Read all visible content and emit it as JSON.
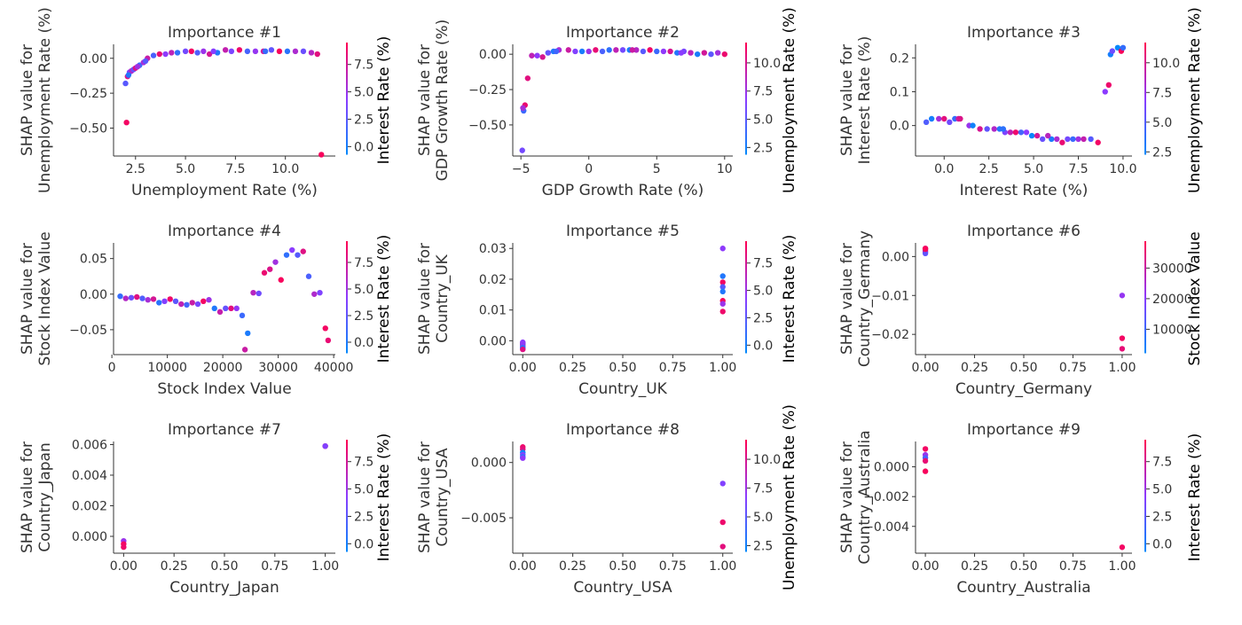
{
  "figure": {
    "colors": {
      "low": "#008afb",
      "mid": "#8c3bff",
      "high": "#ff0052"
    }
  },
  "chart_data": [
    {
      "type": "scatter",
      "title": "Importance #1",
      "xlabel": "Unemployment Rate (%)",
      "ylabel_lines": [
        "SHAP value for",
        "Unemployment Rate (%)"
      ],
      "color_label": "Interest Rate (%)",
      "xlim": [
        1.4,
        12.5
      ],
      "ylim": [
        -0.7,
        0.1
      ],
      "xticks": [
        2.5,
        5.0,
        7.5,
        10.0
      ],
      "xtick_labels": [
        "2.5",
        "5.0",
        "7.5",
        "10.0"
      ],
      "yticks": [
        -0.5,
        -0.25,
        0.0
      ],
      "ytick_labels": [
        "−0.50",
        "−0.25",
        "0.00"
      ],
      "cbar_range": [
        -0.7,
        9.5
      ],
      "cbar_ticks": [
        0.0,
        2.5,
        5.0,
        7.5
      ],
      "cbar_tick_labels": [
        "0.0",
        "2.5",
        "5.0",
        "7.5"
      ],
      "x": [
        2.0,
        2.1,
        2.2,
        2.3,
        2.4,
        2.5,
        2.7,
        2.9,
        3.1,
        3.4,
        3.7,
        4.0,
        4.3,
        4.6,
        5.0,
        5.3,
        5.6,
        5.9,
        6.2,
        6.6,
        7.0,
        7.3,
        7.7,
        8.1,
        8.5,
        8.9,
        9.3,
        9.7,
        10.1,
        10.5,
        10.9,
        11.3,
        11.6,
        2.05,
        11.8,
        2.15,
        2.6,
        3.0,
        6.4,
        9.0
      ],
      "y": [
        -0.18,
        -0.13,
        -0.1,
        -0.09,
        -0.08,
        -0.07,
        -0.05,
        -0.03,
        0.0,
        0.02,
        0.03,
        0.03,
        0.04,
        0.04,
        0.05,
        0.05,
        0.04,
        0.05,
        0.03,
        0.04,
        0.06,
        0.05,
        0.06,
        0.05,
        0.05,
        0.05,
        0.06,
        0.05,
        0.05,
        0.05,
        0.05,
        0.04,
        0.03,
        -0.46,
        -0.69,
        -0.12,
        -0.06,
        -0.02,
        0.05,
        0.05
      ],
      "c": [
        2.5,
        7.8,
        4.0,
        6.0,
        3.0,
        8.0,
        1.5,
        5.5,
        7.0,
        2.0,
        8.5,
        4.5,
        6.5,
        1.0,
        3.5,
        9.0,
        2.2,
        5.0,
        7.5,
        0.5,
        6.8,
        3.8,
        8.8,
        1.8,
        4.8,
        7.2,
        2.8,
        9.2,
        0.8,
        5.8,
        3.2,
        6.2,
        8.2,
        9.0,
        9.2,
        0.5,
        5.2,
        2.5,
        4.2,
        1.2
      ]
    },
    {
      "type": "scatter",
      "title": "Importance #2",
      "xlabel": "GDP Growth Rate (%)",
      "ylabel_lines": [
        "SHAP value for",
        "GDP Growth Rate (%)"
      ],
      "color_label": "Unemployment Rate (%)",
      "xlim": [
        -5.6,
        10.6
      ],
      "ylim": [
        -0.72,
        0.07
      ],
      "xticks": [
        -5,
        0,
        5,
        10
      ],
      "xtick_labels": [
        "−5",
        "0",
        "5",
        "10"
      ],
      "yticks": [
        -0.5,
        -0.25,
        0.0
      ],
      "ytick_labels": [
        "−0.50",
        "−0.25",
        "0.00"
      ],
      "cbar_range": [
        1.9,
        11.8
      ],
      "cbar_ticks": [
        2.5,
        5.0,
        7.5,
        10.0
      ],
      "cbar_tick_labels": [
        "2.5",
        "5.0",
        "7.5",
        "10.0"
      ],
      "x": [
        -4.9,
        -4.8,
        -4.7,
        -4.5,
        -4.2,
        -3.8,
        -3.4,
        -3.0,
        -2.6,
        -2.2,
        -1.5,
        -1.0,
        -0.5,
        0.0,
        0.5,
        1.0,
        1.5,
        2.0,
        2.5,
        3.0,
        3.5,
        4.0,
        4.5,
        5.0,
        5.5,
        6.0,
        6.5,
        7.0,
        7.5,
        8.0,
        8.5,
        9.0,
        9.5,
        10.0,
        -2.4,
        3.2,
        6.8,
        -4.85
      ],
      "y": [
        -0.68,
        -0.4,
        -0.36,
        -0.17,
        -0.01,
        -0.01,
        -0.02,
        0.01,
        0.02,
        0.03,
        0.03,
        0.02,
        0.02,
        0.02,
        0.03,
        0.02,
        0.03,
        0.03,
        0.03,
        0.03,
        0.03,
        0.02,
        0.03,
        0.02,
        0.02,
        0.02,
        0.01,
        0.02,
        0.01,
        0.0,
        0.01,
        0.0,
        0.01,
        0.0,
        0.02,
        0.03,
        0.01,
        -0.38
      ],
      "c": [
        6.0,
        4.0,
        11.0,
        10.5,
        9.0,
        7.0,
        10.0,
        5.5,
        3.0,
        8.0,
        9.5,
        6.5,
        2.8,
        7.5,
        10.8,
        4.5,
        3.5,
        9.0,
        6.0,
        2.6,
        8.5,
        5.0,
        11.2,
        4.0,
        7.0,
        10.0,
        3.2,
        6.2,
        8.8,
        2.7,
        9.8,
        5.2,
        7.8,
        11.0,
        4.2,
        9.5,
        6.8,
        8.0
      ]
    },
    {
      "type": "scatter",
      "title": "Importance #3",
      "xlabel": "Interest Rate (%)",
      "ylabel_lines": [
        "SHAP value for",
        "Interest Rate (%)"
      ],
      "color_label": "Unemployment Rate (%)",
      "xlim": [
        -1.6,
        10.5
      ],
      "ylim": [
        -0.09,
        0.24
      ],
      "xticks": [
        0.0,
        2.5,
        5.0,
        7.5,
        10.0
      ],
      "xtick_labels": [
        "0.0",
        "2.5",
        "5.0",
        "7.5",
        "10.0"
      ],
      "yticks": [
        0.0,
        0.1,
        0.2
      ],
      "ytick_labels": [
        "0.0",
        "0.1",
        "0.2"
      ],
      "cbar_range": [
        2.3,
        11.7
      ],
      "cbar_ticks": [
        2.5,
        5.0,
        7.5,
        10.0
      ],
      "cbar_tick_labels": [
        "2.5",
        "5.0",
        "7.5",
        "10.0"
      ],
      "x": [
        -1.0,
        -0.7,
        -0.3,
        0.0,
        0.3,
        0.6,
        0.8,
        1.4,
        1.6,
        2.0,
        2.4,
        2.8,
        3.1,
        3.4,
        3.7,
        4.0,
        4.3,
        4.6,
        4.9,
        5.2,
        5.5,
        6.0,
        6.3,
        6.6,
        6.9,
        7.2,
        7.5,
        7.8,
        8.2,
        8.6,
        9.0,
        9.2,
        9.3,
        9.4,
        9.7,
        9.9,
        10.0,
        5.8,
        3.3,
        0.9
      ],
      "y": [
        0.01,
        0.02,
        0.02,
        0.02,
        0.01,
        0.02,
        0.02,
        0.0,
        0.0,
        -0.01,
        -0.01,
        -0.01,
        -0.01,
        -0.02,
        -0.02,
        -0.02,
        -0.02,
        -0.02,
        -0.03,
        -0.03,
        -0.04,
        -0.04,
        -0.04,
        -0.05,
        -0.04,
        -0.04,
        -0.04,
        -0.04,
        -0.04,
        -0.05,
        0.1,
        0.12,
        0.21,
        0.22,
        0.23,
        0.22,
        0.23,
        -0.03,
        -0.01,
        0.02
      ],
      "c": [
        5.0,
        3.0,
        8.0,
        10.5,
        6.0,
        4.0,
        9.5,
        7.5,
        2.8,
        10.0,
        5.5,
        8.5,
        3.5,
        6.5,
        9.0,
        11.0,
        4.5,
        7.0,
        2.6,
        9.8,
        5.8,
        3.2,
        8.2,
        10.8,
        6.2,
        4.2,
        7.8,
        9.2,
        5.2,
        11.2,
        7.0,
        11.0,
        3.0,
        6.0,
        2.5,
        11.5,
        4.0,
        8.8,
        3.8,
        10.2
      ]
    },
    {
      "type": "scatter",
      "title": "Importance #4",
      "xlabel": "Stock Index Value",
      "ylabel_lines": [
        "SHAP value for",
        "Stock Index Value"
      ],
      "color_label": "Interest Rate (%)",
      "xlim": [
        300,
        40300
      ],
      "ylim": [
        -0.085,
        0.072
      ],
      "xticks": [
        0,
        10000,
        20000,
        30000,
        40000
      ],
      "xtick_labels": [
        "0",
        "10000",
        "20000",
        "30000",
        "40000"
      ],
      "yticks": [
        -0.05,
        0.0,
        0.05
      ],
      "ytick_labels": [
        "−0.05",
        "0.00",
        "0.05"
      ],
      "cbar_range": [
        -1.0,
        9.5
      ],
      "cbar_ticks": [
        0.0,
        2.5,
        5.0,
        7.5
      ],
      "cbar_tick_labels": [
        "0.0",
        "2.5",
        "5.0",
        "7.5"
      ],
      "x": [
        1500,
        2500,
        3500,
        4500,
        5500,
        6500,
        7500,
        8500,
        9500,
        10500,
        11500,
        12500,
        13500,
        14500,
        15500,
        16500,
        17500,
        18500,
        19500,
        20500,
        21500,
        22500,
        23500,
        24500,
        25500,
        26500,
        27500,
        28500,
        29500,
        30500,
        31500,
        32500,
        33500,
        34500,
        35500,
        36500,
        37500,
        38500,
        39000,
        24000
      ],
      "y": [
        -0.003,
        -0.006,
        -0.005,
        -0.004,
        -0.006,
        -0.008,
        -0.007,
        -0.012,
        -0.01,
        -0.007,
        -0.01,
        -0.014,
        -0.015,
        -0.012,
        -0.014,
        -0.01,
        -0.008,
        -0.02,
        -0.025,
        -0.02,
        -0.02,
        -0.02,
        -0.03,
        -0.055,
        0.002,
        0.001,
        0.03,
        0.035,
        0.045,
        0.02,
        0.055,
        0.062,
        0.055,
        0.06,
        0.025,
        0.0,
        0.002,
        -0.048,
        -0.065,
        -0.078
      ],
      "c": [
        1.0,
        6.0,
        3.0,
        8.0,
        2.0,
        5.5,
        7.5,
        0.5,
        4.0,
        8.8,
        2.5,
        6.5,
        1.5,
        7.0,
        3.5,
        9.0,
        5.0,
        0.2,
        6.8,
        2.8,
        8.2,
        4.5,
        1.2,
        0.0,
        6.2,
        3.2,
        8.6,
        7.8,
        5.2,
        9.2,
        0.8,
        4.2,
        2.2,
        8.0,
        1.8,
        5.8,
        3.8,
        9.0,
        8.5,
        7.0
      ]
    },
    {
      "type": "scatter",
      "title": "Importance #5",
      "xlabel": "Country_UK",
      "ylabel_lines": [
        "SHAP value for",
        "Country_UK"
      ],
      "color_label": "Interest Rate (%)",
      "xlim": [
        -0.05,
        1.05
      ],
      "ylim": [
        -0.0045,
        0.0318
      ],
      "xticks": [
        0.0,
        0.25,
        0.5,
        0.75,
        1.0
      ],
      "xtick_labels": [
        "0.00",
        "0.25",
        "0.50",
        "0.75",
        "1.00"
      ],
      "yticks": [
        0.0,
        0.01,
        0.02,
        0.03
      ],
      "ytick_labels": [
        "0.00",
        "0.01",
        "0.02",
        "0.03"
      ],
      "cbar_range": [
        -0.7,
        9.5
      ],
      "cbar_ticks": [
        0.0,
        2.5,
        5.0,
        7.5
      ],
      "cbar_tick_labels": [
        "0.0",
        "2.5",
        "5.0",
        "7.5"
      ],
      "x": [
        0,
        0,
        0,
        0,
        0,
        0,
        0,
        1,
        1,
        1,
        1,
        1,
        1,
        1,
        1
      ],
      "y": [
        -0.0008,
        -0.0012,
        -0.0016,
        -0.002,
        -0.0024,
        -0.0028,
        -0.0005,
        0.03,
        0.021,
        0.019,
        0.0175,
        0.016,
        0.013,
        0.012,
        0.0095
      ],
      "c": [
        9.0,
        1.0,
        6.0,
        3.0,
        0.2,
        8.0,
        4.5,
        4.5,
        0.5,
        9.0,
        2.5,
        0.5,
        9.2,
        5.0,
        8.8
      ]
    },
    {
      "type": "scatter",
      "title": "Importance #6",
      "xlabel": "Country_Germany",
      "ylabel_lines": [
        "SHAP value for",
        "Country_Germany"
      ],
      "color_label": "Stock Index Value",
      "xlim": [
        -0.05,
        1.05
      ],
      "ylim": [
        -0.0252,
        0.0035
      ],
      "xticks": [
        0.0,
        0.25,
        0.5,
        0.75,
        1.0
      ],
      "xtick_labels": [
        "0.00",
        "0.25",
        "0.50",
        "0.75",
        "1.00"
      ],
      "yticks": [
        -0.02,
        -0.01,
        0.0
      ],
      "ytick_labels": [
        "−0.02",
        "−0.01",
        "0.00"
      ],
      "cbar_range": [
        2300,
        38800
      ],
      "cbar_ticks": [
        10000,
        20000,
        30000
      ],
      "cbar_tick_labels": [
        "10000",
        "20000",
        "30000"
      ],
      "x": [
        0,
        0,
        0,
        0,
        0,
        1,
        1,
        1
      ],
      "y": [
        0.0021,
        0.0016,
        0.0012,
        0.0008,
        0.0019,
        -0.01,
        -0.021,
        -0.0237
      ],
      "c": [
        36000,
        5000,
        30000,
        15000,
        38000,
        22000,
        37000,
        35000
      ]
    },
    {
      "type": "scatter",
      "title": "Importance #7",
      "xlabel": "Country_Japan",
      "ylabel_lines": [
        "SHAP value for",
        "Country_Japan"
      ],
      "color_label": "Interest Rate (%)",
      "xlim": [
        -0.05,
        1.05
      ],
      "ylim": [
        -0.0011,
        0.0062
      ],
      "xticks": [
        0.0,
        0.25,
        0.5,
        0.75,
        1.0
      ],
      "xtick_labels": [
        "0.00",
        "0.25",
        "0.50",
        "0.75",
        "1.00"
      ],
      "yticks": [
        0.0,
        0.002,
        0.004,
        0.006
      ],
      "ytick_labels": [
        "0.000",
        "0.002",
        "0.004",
        "0.006"
      ],
      "cbar_range": [
        -0.7,
        9.5
      ],
      "cbar_ticks": [
        0.0,
        2.5,
        5.0,
        7.5
      ],
      "cbar_tick_labels": [
        "0.0",
        "2.5",
        "5.0",
        "7.5"
      ],
      "x": [
        0,
        0,
        0,
        1,
        1
      ],
      "y": [
        -0.0003,
        -0.0005,
        -0.0007,
        0.0059,
        0.0059
      ],
      "c": [
        5.0,
        9.0,
        8.8,
        9.0,
        4.0
      ]
    },
    {
      "type": "scatter",
      "title": "Importance #8",
      "xlabel": "Country_USA",
      "ylabel_lines": [
        "SHAP value for",
        "Country_USA"
      ],
      "color_label": "Unemployment Rate (%)",
      "xlim": [
        -0.05,
        1.05
      ],
      "ylim": [
        -0.0082,
        0.0019
      ],
      "xticks": [
        0.0,
        0.25,
        0.5,
        0.75,
        1.0
      ],
      "xtick_labels": [
        "0.00",
        "0.25",
        "0.50",
        "0.75",
        "1.00"
      ],
      "yticks": [
        -0.005,
        0.0
      ],
      "ytick_labels": [
        "−0.005",
        "0.000"
      ],
      "cbar_range": [
        2.0,
        11.7
      ],
      "cbar_ticks": [
        2.5,
        5.0,
        7.5,
        10.0
      ],
      "cbar_tick_labels": [
        "2.5",
        "5.0",
        "7.5",
        "10.0"
      ],
      "x": [
        0,
        0,
        0,
        0,
        0,
        0,
        1,
        1,
        1
      ],
      "y": [
        0.0014,
        0.0012,
        0.0009,
        0.0007,
        0.0005,
        0.0004,
        -0.0019,
        -0.0054,
        -0.0076
      ],
      "c": [
        11.0,
        10.5,
        2.5,
        6.5,
        3.0,
        7.0,
        6.5,
        11.0,
        10.5
      ]
    },
    {
      "type": "scatter",
      "title": "Importance #9",
      "xlabel": "Country_Australia",
      "ylabel_lines": [
        "SHAP value for",
        "Country_Australia"
      ],
      "color_label": "Interest Rate (%)",
      "xlim": [
        -0.05,
        1.05
      ],
      "ylim": [
        -0.0058,
        0.0017
      ],
      "xticks": [
        0.0,
        0.25,
        0.5,
        0.75,
        1.0
      ],
      "xtick_labels": [
        "0.00",
        "0.25",
        "0.50",
        "0.75",
        "1.00"
      ],
      "yticks": [
        -0.004,
        -0.002,
        0.0
      ],
      "ytick_labels": [
        "−0.004",
        "−0.002",
        "0.000"
      ],
      "cbar_range": [
        -0.7,
        9.5
      ],
      "cbar_ticks": [
        0.0,
        2.5,
        5.0,
        7.5
      ],
      "cbar_tick_labels": [
        "0.0",
        "2.5",
        "5.0",
        "7.5"
      ],
      "x": [
        0,
        0,
        0,
        0,
        0,
        1
      ],
      "y": [
        0.0012,
        0.0008,
        0.0006,
        0.0004,
        -0.0003,
        -0.0054
      ],
      "c": [
        9.0,
        5.0,
        2.0,
        8.5,
        9.2,
        9.0
      ]
    }
  ]
}
